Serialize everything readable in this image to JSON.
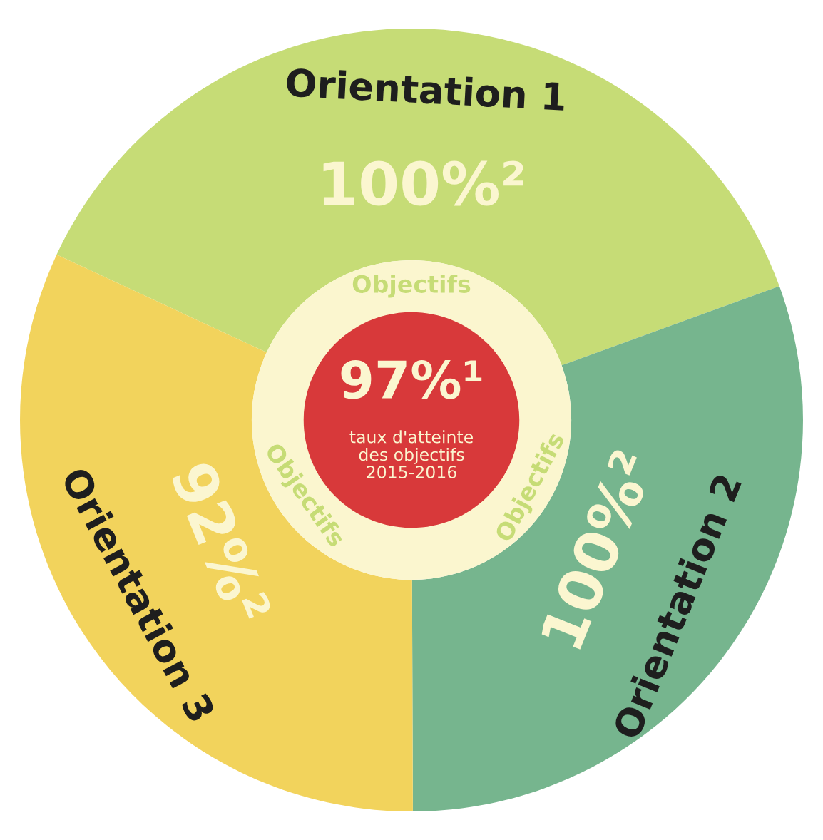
{
  "chart_data": {
    "type": "donut",
    "categories": [
      "Orientation 1",
      "Orientation 2",
      "Orientation 3"
    ],
    "values": [
      37.5,
      30.5,
      32
    ],
    "colors": [
      "#c6dc76",
      "#76b58e",
      "#f2d35c"
    ],
    "annotations": [
      "100%²",
      "100%²",
      "92%²",
      "97%¹",
      "taux d'atteinte\ndes objectifs\n2015-2016",
      "Objectifs",
      "Objectifs",
      "Objectifs"
    ]
  }
}
